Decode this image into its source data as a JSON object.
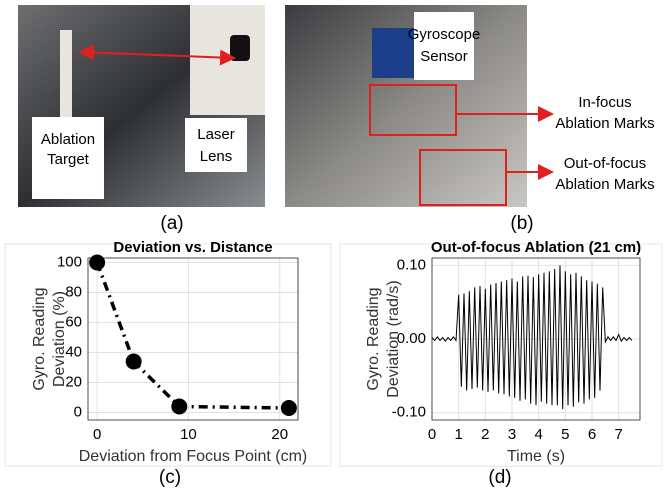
{
  "photos": [
    {
      "caption": "(a)",
      "labels": [
        [
          "Ablation",
          "Target"
        ],
        [
          "Laser",
          "Lens"
        ]
      ]
    },
    {
      "caption": "(b)",
      "labels": [
        [
          "Gyroscope",
          "Sensor"
        ],
        [
          "In-focus",
          "Ablation Marks"
        ],
        [
          "Out-of-focus",
          "Ablation Marks"
        ]
      ]
    }
  ],
  "chart_data": [
    {
      "type": "line",
      "title": "Deviation vs. Distance",
      "caption": "(c)",
      "xlabel": "Deviation from Focus Point (cm)",
      "ylabel": [
        "Gyro. Reading",
        "Deviation (%)"
      ],
      "x": [
        0,
        4,
        9,
        21
      ],
      "values": [
        100,
        34,
        4,
        3
      ],
      "color": "#000000",
      "linestyle": "dashed",
      "marker": "circle",
      "xlim": [
        -1,
        22
      ],
      "ylim": [
        -5,
        103
      ],
      "xticks": [
        0,
        10,
        20
      ],
      "yticks": [
        0,
        20,
        40,
        60,
        80,
        100
      ],
      "grid": true
    },
    {
      "type": "line",
      "title": "Out-of-focus Ablation (21 cm)",
      "caption": "(d)",
      "xlabel": "Time (s)",
      "ylabel": [
        "Gyro. Reading",
        "Deviation (rad/s)"
      ],
      "x": [
        0,
        0.1,
        0.2,
        0.3,
        0.4,
        0.5,
        0.6,
        0.7,
        0.8,
        0.9,
        1,
        1.1,
        1.2,
        1.3,
        1.4,
        1.5,
        1.6,
        1.7,
        1.8,
        1.9,
        2,
        2.1,
        2.2,
        2.3,
        2.4,
        2.5,
        2.6,
        2.7,
        2.8,
        2.9,
        3,
        3.1,
        3.2,
        3.3,
        3.4,
        3.5,
        3.6,
        3.7,
        3.8,
        3.9,
        4,
        4.1,
        4.2,
        4.3,
        4.4,
        4.5,
        4.6,
        4.7,
        4.8,
        4.9,
        5,
        5.1,
        5.2,
        5.3,
        5.4,
        5.5,
        5.6,
        5.7,
        5.8,
        5.9,
        6,
        6.1,
        6.2,
        6.3,
        6.4,
        6.5,
        6.6,
        6.7,
        6.8,
        6.9,
        7,
        7.1,
        7.2,
        7.3,
        7.4,
        7.5
      ],
      "values": [
        0.002,
        -0.002,
        0.003,
        -0.002,
        0.002,
        -0.003,
        0.002,
        -0.002,
        0.003,
        -0.002,
        0.06,
        -0.065,
        0.062,
        -0.07,
        0.065,
        -0.068,
        0.07,
        -0.066,
        0.072,
        -0.07,
        0.068,
        -0.072,
        0.074,
        -0.07,
        0.076,
        -0.074,
        0.078,
        -0.075,
        0.08,
        -0.078,
        0.082,
        -0.08,
        0.078,
        -0.084,
        0.085,
        -0.082,
        0.086,
        -0.088,
        0.084,
        -0.09,
        0.088,
        -0.085,
        0.09,
        -0.088,
        0.092,
        -0.09,
        0.095,
        -0.09,
        0.1,
        -0.095,
        0.092,
        -0.09,
        0.088,
        -0.092,
        0.09,
        -0.086,
        0.085,
        -0.088,
        0.08,
        -0.082,
        0.078,
        -0.08,
        0.075,
        -0.07,
        0.07,
        -0.004,
        0.003,
        -0.002,
        0.003,
        -0.002,
        0.006,
        -0.003,
        0.002,
        -0.002,
        0.002,
        -0.002
      ],
      "color": "#000000",
      "linestyle": "solid",
      "xlim": [
        0,
        7.8
      ],
      "ylim": [
        -0.11,
        0.11
      ],
      "xticks": [
        0,
        1,
        2,
        3,
        4,
        5,
        6,
        7
      ],
      "yticks": [
        {
          "value": -0.1,
          "label": "-0.10"
        },
        {
          "value": 0,
          "label": "0.00"
        },
        {
          "value": 0.1,
          "label": "0.10"
        }
      ],
      "grid": true
    }
  ]
}
